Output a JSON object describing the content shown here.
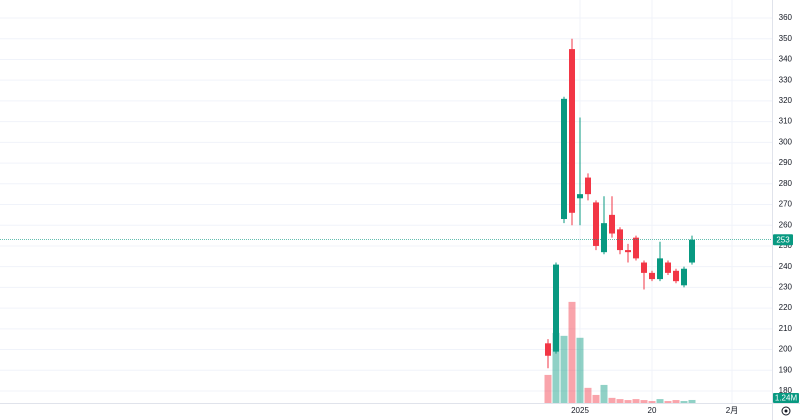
{
  "chart_data": {
    "type": "candlestick",
    "categories": [
      null,
      null,
      null,
      null,
      "2025",
      null,
      null,
      null,
      null,
      null,
      null,
      null,
      null,
      "20",
      null,
      null,
      null,
      null,
      null,
      null,
      null,
      null,
      null,
      "2月"
    ],
    "open": [
      203,
      199,
      263,
      345,
      273,
      283,
      271,
      247,
      265,
      258,
      248,
      254,
      242,
      237,
      234,
      242,
      238,
      231,
      242,
      null,
      null,
      null,
      null,
      null
    ],
    "high": [
      205,
      242,
      322,
      350,
      312,
      285,
      272,
      274,
      274,
      259,
      251,
      255,
      243,
      238,
      252,
      243,
      239,
      240,
      255,
      null,
      null,
      null,
      null,
      null
    ],
    "low": [
      191,
      198,
      261,
      260,
      260,
      272,
      248,
      246,
      254,
      246,
      242,
      243,
      229,
      233,
      233,
      236,
      232,
      230,
      241,
      null,
      null,
      null,
      null,
      null
    ],
    "close": [
      197,
      241,
      321,
      266,
      275,
      275,
      250,
      261,
      256,
      248,
      247,
      244,
      237,
      234,
      244,
      237,
      233,
      239,
      253,
      null,
      null,
      null,
      null,
      null
    ],
    "volume": [
      11500000,
      28700000,
      27500000,
      41400000,
      26700000,
      6200000,
      3300000,
      7400000,
      2100000,
      1600000,
      1200000,
      1600000,
      1200000,
      800000,
      1600000,
      800000,
      1200000,
      800000,
      1240000,
      null,
      null,
      null,
      null,
      null
    ],
    "volume_value_labels": [
      null,
      null,
      null,
      null,
      null,
      null,
      null,
      null,
      null,
      null,
      null,
      null,
      null,
      null,
      null,
      null,
      null,
      null,
      "1.24M",
      null,
      null,
      null,
      null,
      null
    ],
    "volume_ylim": [
      0,
      165000000
    ],
    "up_color": "#089981",
    "down_color": "#f23645",
    "ylim": [
      174.2,
      368.7
    ],
    "yticks": [
      180,
      190,
      200,
      210,
      220,
      230,
      240,
      250,
      260,
      270,
      280,
      290,
      300,
      310,
      320,
      330,
      340,
      350,
      360
    ],
    "grid": true
  }
}
